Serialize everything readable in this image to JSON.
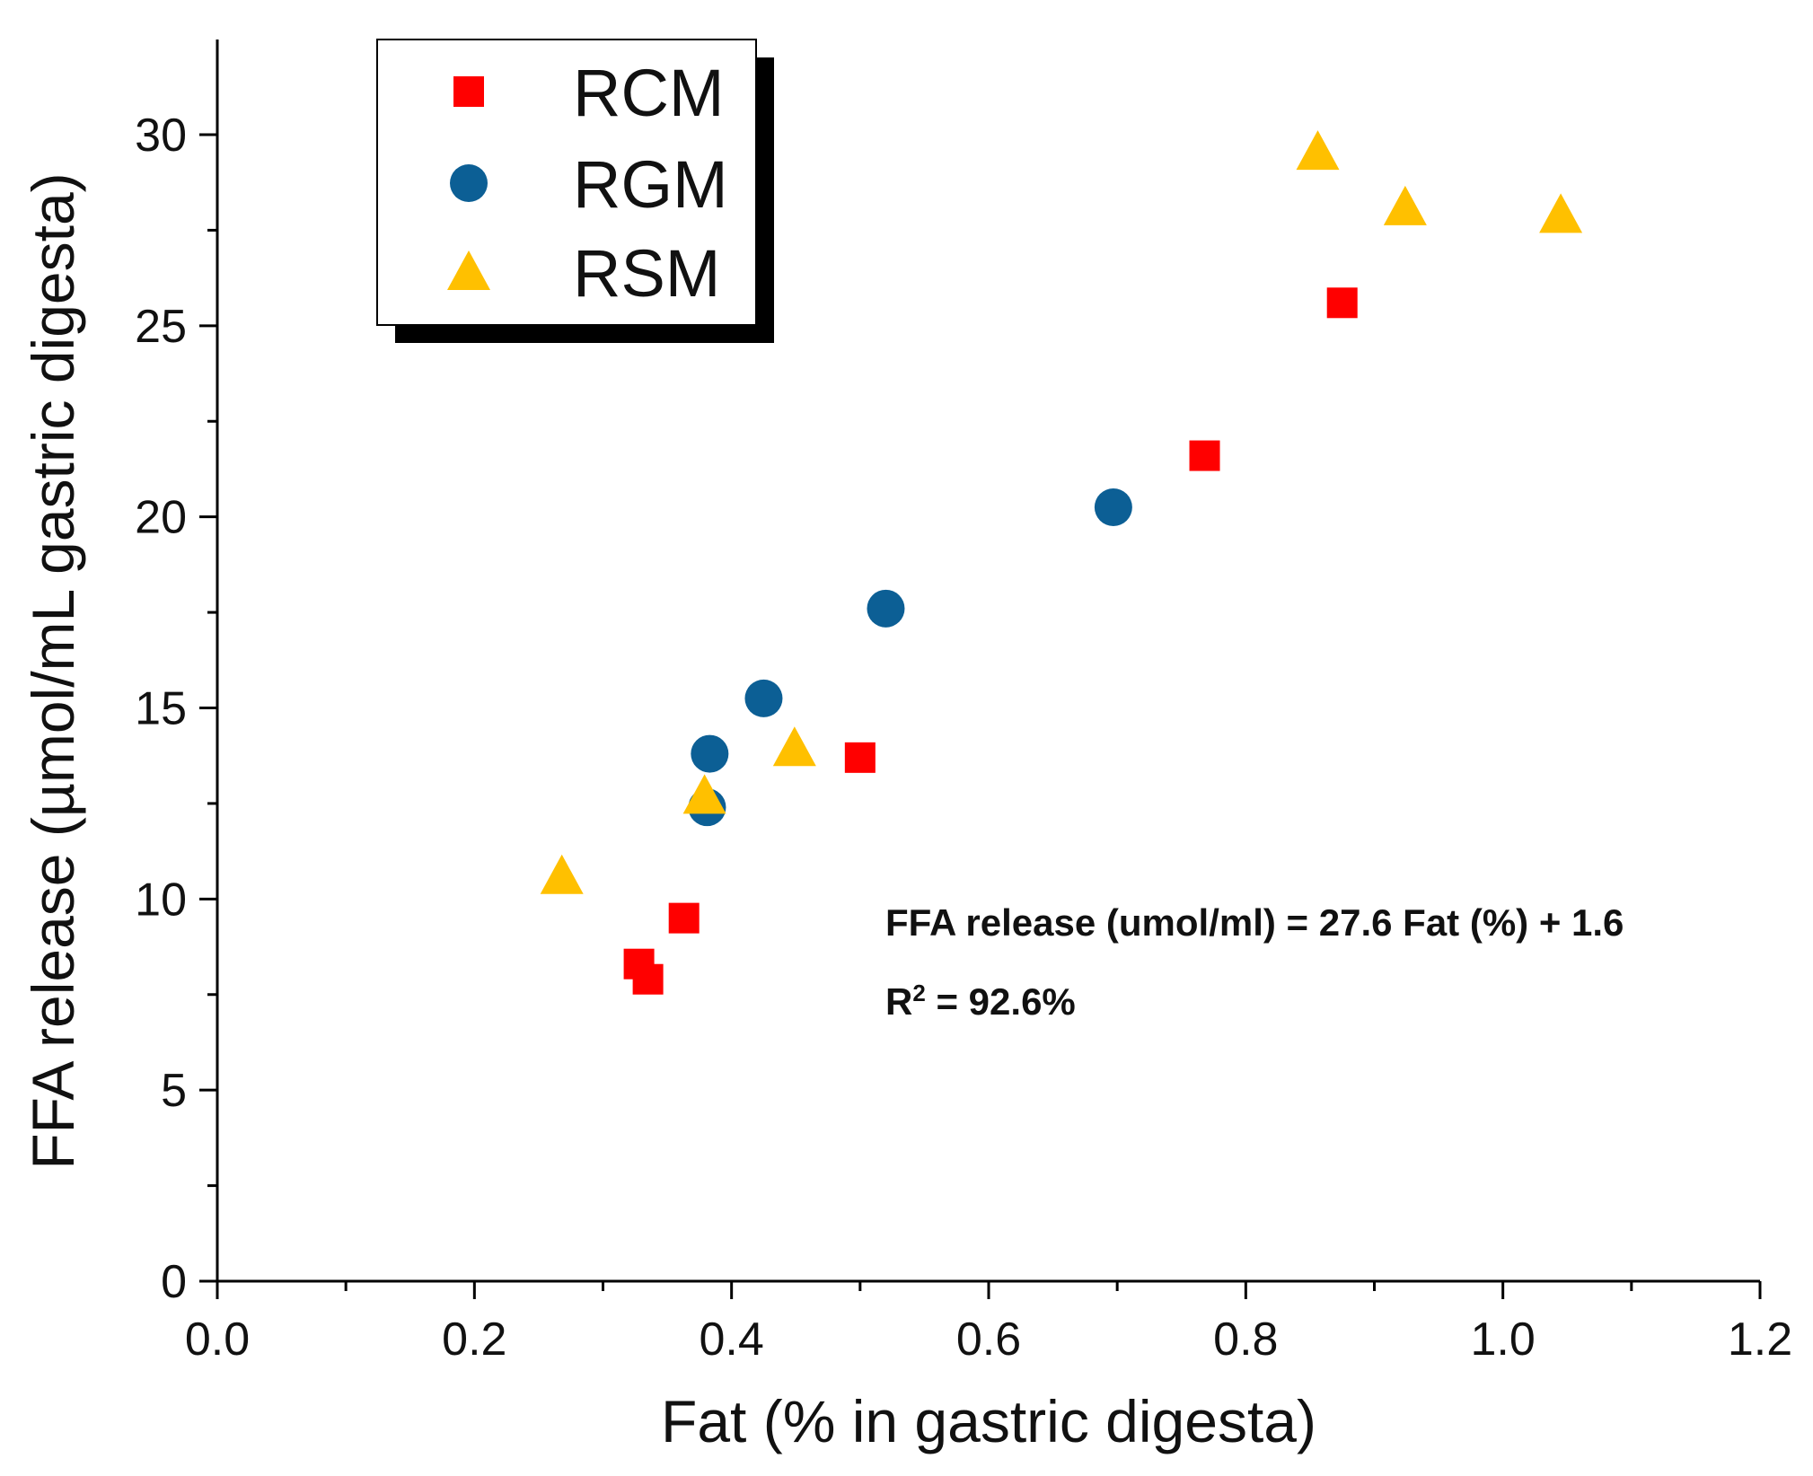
{
  "chart_data": {
    "type": "scatter",
    "title": "",
    "xlabel": "Fat (% in gastric digesta)",
    "ylabel": "FFA release (µmol/mL gastric digesta)",
    "xlim": [
      0.0,
      1.2
    ],
    "ylim": [
      0,
      32.5
    ],
    "xticks": [
      0.0,
      0.2,
      0.4,
      0.6,
      0.8,
      1.0,
      1.2
    ],
    "xtick_labels": [
      "0.0",
      "0.2",
      "0.4",
      "0.6",
      "0.8",
      "1.0",
      "1.2"
    ],
    "yticks": [
      0,
      5,
      10,
      15,
      20,
      25,
      30
    ],
    "ytick_labels": [
      "0",
      "5",
      "10",
      "15",
      "20",
      "25",
      "30"
    ],
    "grid": false,
    "legend_position": "top-left",
    "series": [
      {
        "name": "RCM",
        "marker": "square",
        "color": "#ff0000",
        "points": [
          {
            "x": 0.328,
            "y": 8.3
          },
          {
            "x": 0.335,
            "y": 7.9
          },
          {
            "x": 0.363,
            "y": 9.5
          },
          {
            "x": 0.5,
            "y": 13.7
          },
          {
            "x": 0.768,
            "y": 21.6
          },
          {
            "x": 0.875,
            "y": 25.6
          }
        ]
      },
      {
        "name": "RGM",
        "marker": "circle",
        "color": "#0c5f95",
        "points": [
          {
            "x": 0.381,
            "y": 12.4
          },
          {
            "x": 0.383,
            "y": 13.8
          },
          {
            "x": 0.425,
            "y": 15.25
          },
          {
            "x": 0.52,
            "y": 17.6
          },
          {
            "x": 0.697,
            "y": 20.25
          }
        ]
      },
      {
        "name": "RSM",
        "marker": "triangle",
        "color": "#ffc000",
        "points": [
          {
            "x": 0.268,
            "y": 10.6
          },
          {
            "x": 0.379,
            "y": 12.7
          },
          {
            "x": 0.449,
            "y": 13.95
          },
          {
            "x": 0.856,
            "y": 29.55
          },
          {
            "x": 0.924,
            "y": 28.1
          },
          {
            "x": 1.045,
            "y": 27.9
          }
        ]
      }
    ],
    "annotations": {
      "equation": "FFA release (umol/ml) = 27.6 Fat (%) + 1.6",
      "r2_label": "R",
      "r2_superscript": "2",
      "r2_value": " = 92.6%"
    }
  }
}
